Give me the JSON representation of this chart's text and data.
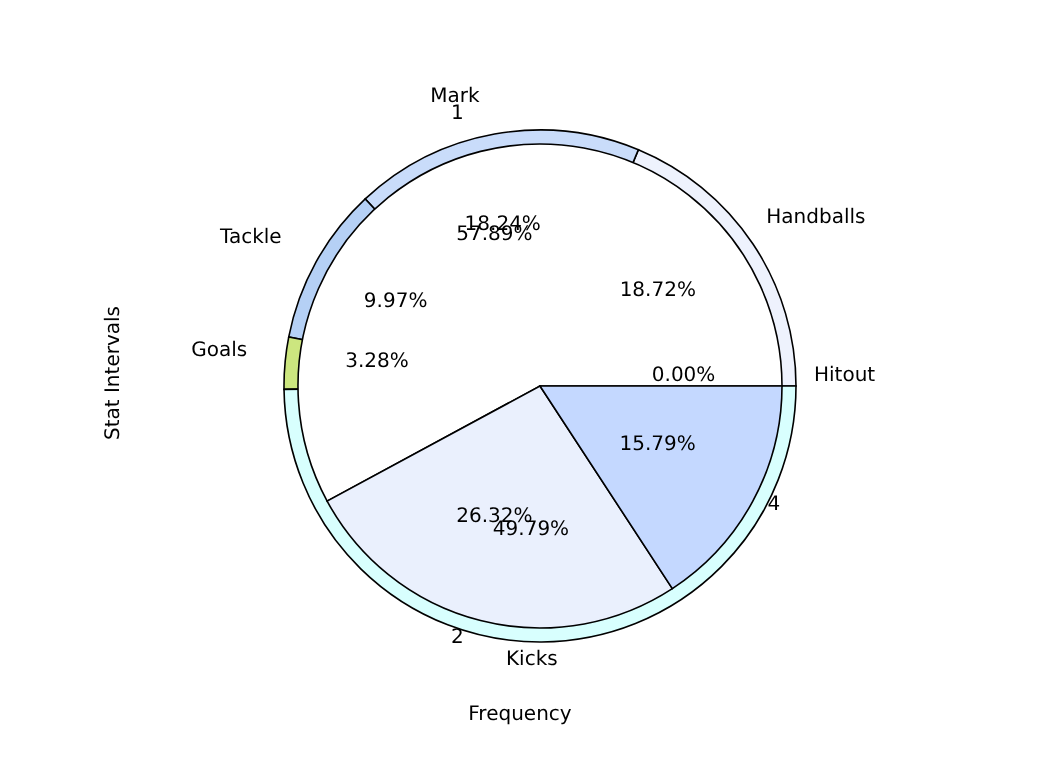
{
  "chart_data": [
    {
      "type": "pie",
      "xlabel": "Frequency",
      "ylabel": "Stat Intervals",
      "categories": [
        "Handballs",
        "Mark",
        "Tackle",
        "Goals",
        "Kicks",
        "Hitout"
      ],
      "values": [
        18.72,
        18.24,
        9.97,
        3.28,
        49.79,
        0.0
      ],
      "value_labels": [
        "18.72%",
        "18.24%",
        "9.97%",
        "3.28%",
        "49.79%",
        "0.00%"
      ],
      "colors": [
        "#eef2fd",
        "#c9dcfa",
        "#b5d0f5",
        "#cce67f",
        "#d8fffe",
        "#aaaaaa"
      ]
    },
    {
      "type": "pie",
      "categories": [
        "1",
        "2",
        "4"
      ],
      "values": [
        57.89,
        26.32,
        15.79
      ],
      "value_labels": [
        "57.89%",
        "26.32%",
        "15.79%"
      ],
      "colors": [
        "#ffffff",
        "#eaf0fd",
        "#c4d8ff"
      ]
    }
  ]
}
